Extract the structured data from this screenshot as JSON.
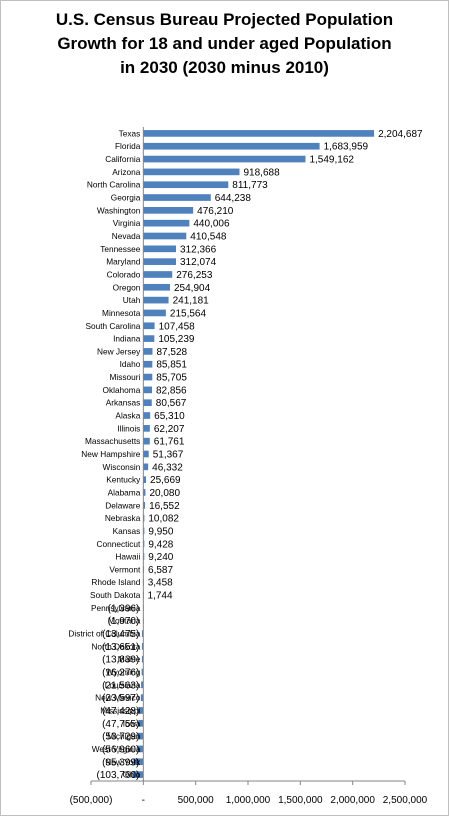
{
  "chart_data": {
    "type": "bar",
    "orientation": "horizontal",
    "title_lines": [
      "U.S. Census Bureau Projected Population",
      "Growth for 18 and under aged Population",
      "in 2030 (2030 minus 2010)"
    ],
    "bar_color": "#4f81bd",
    "categories": [
      "Texas",
      "Florida",
      "California",
      "Arizona",
      "North Carolina",
      "Georgia",
      "Washington",
      "Virginia",
      "Nevada",
      "Tennessee",
      "Maryland",
      "Colorado",
      "Oregon",
      "Utah",
      "Minnesota",
      "South Carolina",
      "Indiana",
      "New Jersey",
      "Idaho",
      "Missouri",
      "Oklahoma",
      "Arkansas",
      "Alaska",
      "Illinois",
      "Massachusetts",
      "New Hampshire",
      "Wisconsin",
      "Kentucky",
      "Alabama",
      "Delaware",
      "Nebraska",
      "Kansas",
      "Connecticut",
      "Hawaii",
      "Vermont",
      "Rhode Island",
      "South Dakota",
      "Pennsylvania",
      "Montana",
      "District of Columbia",
      "North Dakota",
      "Maine",
      "Wyoming",
      "Louisiana",
      "New Mexico",
      "Mississippi",
      "Iowa",
      "Michigan",
      "West Virginia",
      "New York",
      "Ohio"
    ],
    "values": [
      2204687,
      1683959,
      1549162,
      918688,
      811773,
      644238,
      476210,
      440006,
      410548,
      312366,
      312074,
      276253,
      254904,
      241181,
      215564,
      107458,
      105239,
      87528,
      85851,
      85705,
      82856,
      80567,
      65310,
      62207,
      61761,
      51367,
      46332,
      25669,
      20080,
      16552,
      10082,
      9950,
      9428,
      9240,
      6587,
      3458,
      1744,
      -1396,
      -1970,
      -13475,
      -13651,
      -13839,
      -16276,
      -21563,
      -23597,
      -47428,
      -47755,
      -53729,
      -56960,
      -95399,
      -103760
    ],
    "data_labels": [
      "2,204,687",
      "1,683,959",
      "1,549,162",
      "918,688",
      "811,773",
      "644,238",
      "476,210",
      "440,006",
      "410,548",
      "312,366",
      "312,074",
      "276,253",
      "254,904",
      "241,181",
      "215,564",
      "107,458",
      "105,239",
      "87,528",
      "85,851",
      "85,705",
      "82,856",
      "80,567",
      "65,310",
      "62,207",
      "61,761",
      "51,367",
      "46,332",
      "25,669",
      "20,080",
      "16,552",
      "10,082",
      "9,950",
      "9,428",
      "9,240",
      "6,587",
      "3,458",
      "1,744",
      "(1,396)",
      "(1,970)",
      "(13,475)",
      "(13,651)",
      "(13,839)",
      "(16,276)",
      "(21,563)",
      "(23,597)",
      "(47,428)",
      "(47,755)",
      "(53,729)",
      "(56,960)",
      "(95,399)",
      "(103,760)"
    ],
    "xlim": [
      -500000,
      2500000
    ],
    "x_ticks": [
      -500000,
      0,
      500000,
      1000000,
      1500000,
      2000000,
      2500000
    ],
    "x_tick_labels": [
      "(500,000)",
      "-",
      "500,000",
      "1,000,000",
      "1,500,000",
      "2,000,000",
      "2,500,000"
    ],
    "grid": false,
    "legend": "none"
  }
}
